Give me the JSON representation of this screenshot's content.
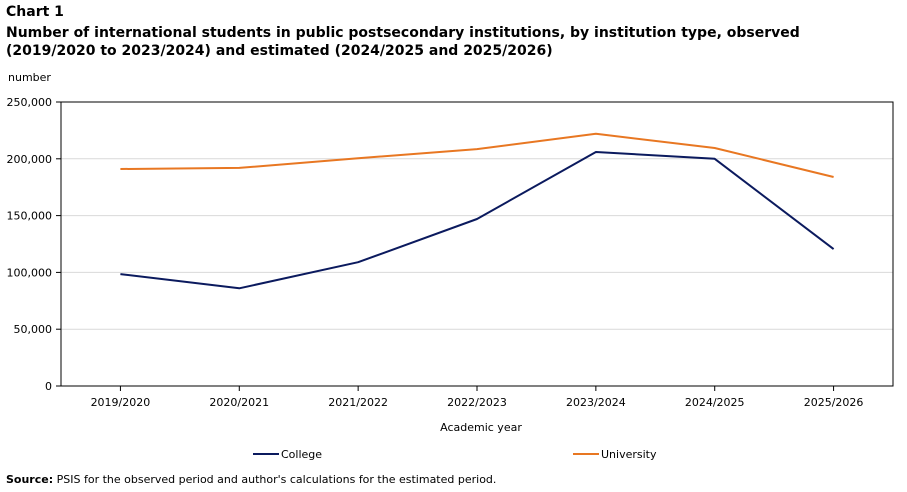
{
  "chart_label": "Chart 1",
  "source_label": "Source:",
  "source_text": "PSIS for the observed period and author's calculations for the estimated period.",
  "chart_data": {
    "type": "line",
    "title": "Number of international students in public postsecondary institutions, by institution type, observed (2019/2020 to 2023/2024) and estimated (2024/2025 and 2025/2026)",
    "ylabel": "number",
    "xlabel": "Academic year",
    "categories": [
      "2019/2020",
      "2020/2021",
      "2021/2022",
      "2022/2023",
      "2023/2024",
      "2024/2025",
      "2025/2026"
    ],
    "ylim": [
      0,
      250000
    ],
    "yticks": [
      0,
      50000,
      100000,
      150000,
      200000,
      250000
    ],
    "ytick_labels": [
      "0",
      "50,000",
      "100,000",
      "150,000",
      "200,000",
      "250,000"
    ],
    "grid": true,
    "legend_position": "bottom",
    "series": [
      {
        "name": "College",
        "color": "#0b1a5e",
        "values": [
          98500,
          86000,
          109000,
          147000,
          206000,
          200000,
          120500
        ]
      },
      {
        "name": "University",
        "color": "#e87722",
        "values": [
          191000,
          192000,
          200500,
          208500,
          222000,
          209500,
          184000
        ]
      }
    ]
  }
}
